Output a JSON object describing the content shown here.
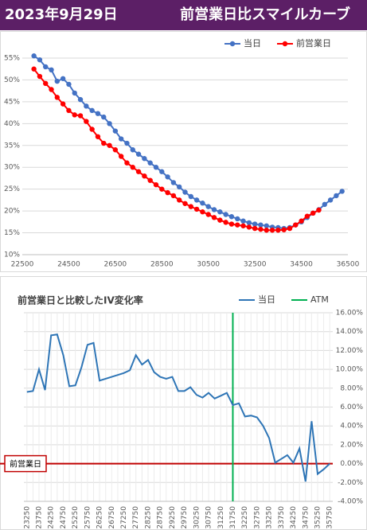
{
  "header": {
    "date": "2023年9月29日",
    "title": "前営業日比スマイルカーブ"
  },
  "chart_data": [
    {
      "type": "line",
      "markers": true,
      "grid": "y",
      "legend": "top-right",
      "y_axis_side": "left",
      "x": [
        23000,
        23250,
        23500,
        23750,
        24000,
        24250,
        24500,
        24750,
        25000,
        25250,
        25500,
        25750,
        26000,
        26250,
        26500,
        26750,
        27000,
        27250,
        27500,
        27750,
        28000,
        28250,
        28500,
        28750,
        29000,
        29250,
        29500,
        29750,
        30000,
        30250,
        30500,
        30750,
        31000,
        31250,
        31500,
        31750,
        32000,
        32250,
        32500,
        32750,
        33000,
        33250,
        33500,
        33750,
        34000,
        34250,
        34500,
        34750,
        35000,
        35250,
        35500,
        35750,
        36000,
        36250
      ],
      "xlim": [
        22500,
        36500
      ],
      "xticks": [
        22500,
        24500,
        26500,
        28500,
        30500,
        32500,
        34500,
        36500
      ],
      "ylim": [
        10,
        57
      ],
      "yticks": [
        {
          "value": 10,
          "label": "10%"
        },
        {
          "value": 15,
          "label": "15%"
        },
        {
          "value": 20,
          "label": "20%"
        },
        {
          "value": 25,
          "label": "25%"
        },
        {
          "value": 30,
          "label": "30%"
        },
        {
          "value": 35,
          "label": "35%"
        },
        {
          "value": 40,
          "label": "40%"
        },
        {
          "value": 45,
          "label": "45%"
        },
        {
          "value": 50,
          "label": "50%"
        },
        {
          "value": 55,
          "label": "55%"
        }
      ],
      "series": [
        {
          "name": "当日",
          "color": "#4472c4",
          "values": [
            55.5,
            54.6,
            53,
            52.3,
            49.7,
            50.3,
            49,
            47,
            45.5,
            44,
            43,
            42.3,
            41.5,
            40,
            38.3,
            36.5,
            35.5,
            34,
            33,
            32,
            31,
            30,
            29,
            27.8,
            26.5,
            25.5,
            24.3,
            23.3,
            22.5,
            21.8,
            21,
            20.3,
            19.8,
            19.2,
            18.7,
            18.2,
            17.7,
            17.3,
            17,
            16.8,
            16.6,
            16.3,
            16.2,
            16,
            16.2,
            16.8,
            17.5,
            18.5,
            19.5,
            20.3,
            21.5,
            22.5,
            23.5,
            24.5
          ]
        },
        {
          "name": "前営業日",
          "color": "#ff0000",
          "values": [
            52.5,
            50.8,
            49.2,
            47.8,
            46,
            44.5,
            43,
            42,
            41.8,
            40.5,
            38.7,
            37,
            35.5,
            35,
            34,
            32.5,
            31,
            30,
            29,
            28,
            27,
            26,
            25,
            24.2,
            23.5,
            22.5,
            21.7,
            21,
            20.4,
            19.8,
            19.2,
            18.5,
            17.9,
            17.4,
            17,
            16.8,
            16.6,
            16.3,
            16,
            15.8,
            15.6,
            15.6,
            15.6,
            15.7,
            16,
            16.8,
            17.7,
            18.8,
            19.5,
            20.2,
            null,
            null,
            null,
            null
          ]
        }
      ]
    },
    {
      "type": "line",
      "markers": false,
      "grid": "both",
      "legend": "top-right",
      "y_axis_side": "right",
      "title": "前営業日と比較したIV変化率",
      "categories": [
        "23250",
        null,
        "23750",
        null,
        "24250",
        null,
        "24750",
        null,
        "25250",
        null,
        "25750",
        null,
        "26250",
        null,
        "26750",
        null,
        "27250",
        null,
        "27750",
        null,
        "28250",
        null,
        "28750",
        null,
        "29250",
        null,
        "29750",
        null,
        "30250",
        null,
        "30750",
        null,
        "31250",
        null,
        "31750",
        null,
        "32250",
        null,
        "32750",
        null,
        "33250",
        null,
        "33750",
        null,
        "34250",
        null,
        "34750",
        null,
        "35250",
        null,
        "35750"
      ],
      "ylim": [
        -4,
        16
      ],
      "yticks": [
        {
          "value": -4,
          "label": "-4.00%"
        },
        {
          "value": -2,
          "label": "-2.00%"
        },
        {
          "value": 0,
          "label": "0.00%"
        },
        {
          "value": 2,
          "label": "2.00%"
        },
        {
          "value": 4,
          "label": "4.00%"
        },
        {
          "value": 6,
          "label": "6.00%"
        },
        {
          "value": 8,
          "label": "8.00%"
        },
        {
          "value": 10,
          "label": "10.00%"
        },
        {
          "value": 12,
          "label": "12.00%"
        },
        {
          "value": 14,
          "label": "14.00%"
        },
        {
          "value": 16,
          "label": "16.00%"
        }
      ],
      "series": [
        {
          "name": "当日",
          "color": "#2e75b6",
          "values": [
            7.6,
            7.7,
            10,
            7.8,
            13.6,
            13.7,
            11.5,
            8.2,
            8.3,
            10.2,
            12.6,
            12.8,
            8.8,
            9,
            9.2,
            9.4,
            9.6,
            9.9,
            11.5,
            10.5,
            11,
            9.7,
            9.2,
            9,
            9.2,
            7.7,
            7.7,
            8.1,
            7.3,
            7,
            7.5,
            6.9,
            7.2,
            7.5,
            6.2,
            6.4,
            5,
            5.1,
            4.9,
            4,
            2.7,
            0.1,
            0.5,
            0.9,
            0.1,
            1.6,
            -1.9,
            4.5,
            -1.1,
            -0.6,
            0
          ]
        }
      ],
      "atm": {
        "name": "ATM",
        "color": "#00b050",
        "category": "31750"
      },
      "reference_line": {
        "label": "前営業日",
        "value": 0,
        "color": "#c00000"
      }
    }
  ]
}
